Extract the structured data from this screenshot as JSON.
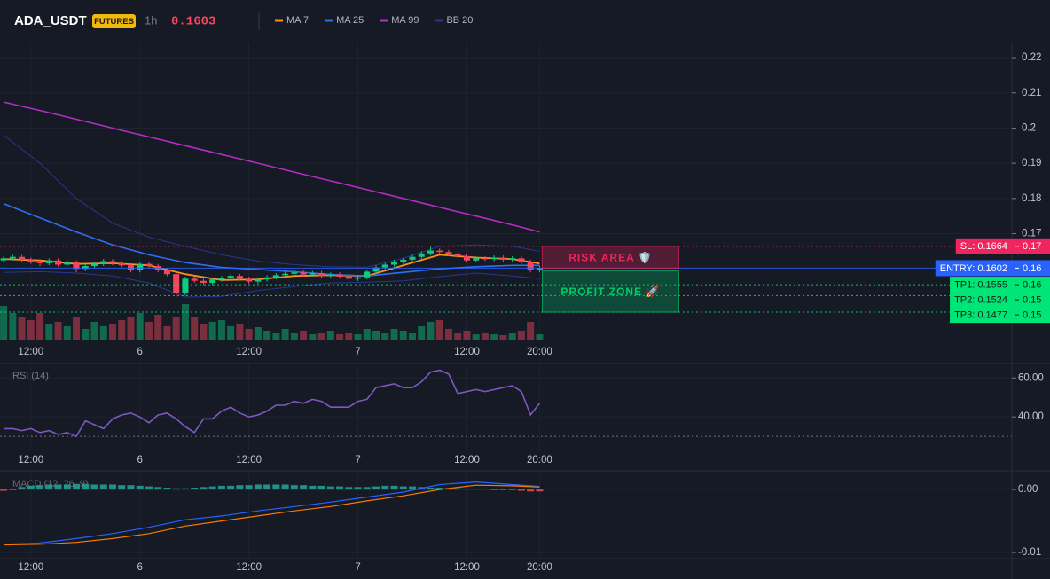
{
  "header": {
    "symbol": "ADA_USDT",
    "badge": "FUTURES",
    "interval": "1h",
    "last_price": 0.1603
  },
  "chart_data": [
    {
      "type": "candlestick",
      "grid": true,
      "x": [
        9,
        10,
        11,
        12,
        13,
        14,
        15,
        16,
        17,
        18,
        19,
        20,
        21,
        22,
        23,
        24,
        25,
        26,
        27,
        28,
        29,
        30,
        31,
        32,
        33,
        34,
        35,
        36,
        37,
        38,
        39,
        40,
        41,
        42,
        43,
        44,
        45,
        46,
        47,
        48,
        49,
        50,
        51,
        52,
        53,
        54,
        55,
        56,
        57,
        58,
        59,
        60,
        61,
        62,
        63,
        64,
        65,
        66,
        67,
        68
      ],
      "open": [
        0.1624,
        0.163,
        0.1634,
        0.1626,
        0.162,
        0.1616,
        0.1624,
        0.1612,
        0.1618,
        0.16,
        0.1608,
        0.1614,
        0.1622,
        0.1616,
        0.161,
        0.1596,
        0.1614,
        0.1608,
        0.1596,
        0.1585,
        0.153,
        0.1572,
        0.1566,
        0.156,
        0.157,
        0.1574,
        0.158,
        0.1572,
        0.1564,
        0.157,
        0.1576,
        0.1582,
        0.1586,
        0.159,
        0.1584,
        0.1588,
        0.158,
        0.1584,
        0.1578,
        0.1572,
        0.1576,
        0.1592,
        0.1604,
        0.1612,
        0.162,
        0.1626,
        0.1634,
        0.1644,
        0.1652,
        0.1648,
        0.1642,
        0.1636,
        0.1624,
        0.163,
        0.1628,
        0.1632,
        0.1626,
        0.163,
        0.162,
        0.1596
      ],
      "high": [
        0.1636,
        0.164,
        0.164,
        0.1632,
        0.1626,
        0.163,
        0.163,
        0.1624,
        0.1624,
        0.1614,
        0.162,
        0.1628,
        0.1628,
        0.1622,
        0.1616,
        0.162,
        0.162,
        0.1614,
        0.1602,
        0.1591,
        0.1578,
        0.1578,
        0.1572,
        0.1576,
        0.158,
        0.1586,
        0.1586,
        0.1578,
        0.1576,
        0.1582,
        0.1588,
        0.1592,
        0.1596,
        0.1596,
        0.1594,
        0.1594,
        0.159,
        0.159,
        0.1584,
        0.1582,
        0.1598,
        0.161,
        0.1618,
        0.1626,
        0.1632,
        0.164,
        0.165,
        0.1662,
        0.1658,
        0.1654,
        0.1648,
        0.1642,
        0.1636,
        0.1636,
        0.1638,
        0.1638,
        0.1636,
        0.1636,
        0.1626,
        0.1609
      ],
      "low": [
        0.1618,
        0.1624,
        0.162,
        0.1614,
        0.1608,
        0.161,
        0.1606,
        0.1606,
        0.159,
        0.1594,
        0.1602,
        0.1608,
        0.161,
        0.1604,
        0.159,
        0.159,
        0.1602,
        0.159,
        0.1579,
        0.1518,
        0.1524,
        0.156,
        0.1554,
        0.1554,
        0.1564,
        0.1568,
        0.1566,
        0.1558,
        0.1558,
        0.1564,
        0.157,
        0.1576,
        0.158,
        0.1578,
        0.1578,
        0.1574,
        0.1574,
        0.1572,
        0.1566,
        0.1566,
        0.157,
        0.1586,
        0.1598,
        0.1606,
        0.1614,
        0.162,
        0.1628,
        0.1638,
        0.1642,
        0.1636,
        0.163,
        0.1618,
        0.1618,
        0.1622,
        0.1622,
        0.162,
        0.162,
        0.1614,
        0.159,
        0.159
      ],
      "close": [
        0.163,
        0.1634,
        0.1626,
        0.162,
        0.1616,
        0.1624,
        0.1612,
        0.1618,
        0.16,
        0.1608,
        0.1614,
        0.1622,
        0.1616,
        0.161,
        0.1596,
        0.1614,
        0.1608,
        0.1596,
        0.1585,
        0.153,
        0.1572,
        0.1566,
        0.156,
        0.157,
        0.1574,
        0.158,
        0.1572,
        0.1564,
        0.157,
        0.1576,
        0.1582,
        0.1586,
        0.159,
        0.1584,
        0.1588,
        0.158,
        0.1584,
        0.1578,
        0.1572,
        0.1576,
        0.1592,
        0.1604,
        0.1612,
        0.162,
        0.1626,
        0.1634,
        0.1644,
        0.1652,
        0.1648,
        0.1642,
        0.1636,
        0.1624,
        0.163,
        0.1628,
        0.1632,
        0.1626,
        0.163,
        0.162,
        0.1596,
        0.1603
      ],
      "volume": [
        38,
        30,
        25,
        22,
        30,
        18,
        20,
        15,
        25,
        12,
        20,
        15,
        18,
        22,
        25,
        30,
        20,
        28,
        15,
        25,
        40,
        26,
        18,
        20,
        22,
        15,
        18,
        12,
        14,
        10,
        8,
        12,
        8,
        10,
        6,
        8,
        10,
        6,
        8,
        6,
        12,
        10,
        8,
        12,
        10,
        8,
        15,
        20,
        22,
        12,
        8,
        10,
        6,
        8,
        6,
        5,
        8,
        10,
        20,
        6
      ],
      "up_color": "#0ecb81",
      "down_color": "#f6465d",
      "xlim": [
        8.6,
        120
      ],
      "ylim": [
        0.1394,
        0.2243
      ],
      "xticks": [
        {
          "value": 12,
          "label": "12:00"
        },
        {
          "value": 24,
          "label": "6"
        },
        {
          "value": 36,
          "label": "12:00"
        },
        {
          "value": 48,
          "label": "7"
        },
        {
          "value": 60,
          "label": "12:00"
        },
        {
          "value": 68,
          "label": "20:00"
        }
      ],
      "yticks": [
        0.22,
        0.21,
        0.2,
        0.19,
        0.18,
        0.17
      ],
      "series": [
        {
          "name": "MA 7",
          "color": "#f7931a",
          "x": [
            9,
            13,
            17,
            21,
            25,
            29,
            33,
            37,
            41,
            45,
            49,
            53,
            57,
            61,
            65,
            68
          ],
          "values": [
            0.1628,
            0.1624,
            0.1614,
            0.1616,
            0.161,
            0.1585,
            0.1568,
            0.157,
            0.158,
            0.1582,
            0.158,
            0.161,
            0.164,
            0.1632,
            0.1628,
            0.1615
          ]
        },
        {
          "name": "MA 25",
          "color": "#2f6fed",
          "x": [
            9,
            13,
            17,
            21,
            25,
            29,
            33,
            37,
            41,
            45,
            49,
            53,
            57,
            61,
            65,
            68
          ],
          "values": [
            0.1785,
            0.1745,
            0.1705,
            0.1668,
            0.164,
            0.1618,
            0.1604,
            0.1598,
            0.1592,
            0.1584,
            0.158,
            0.159,
            0.16,
            0.1606,
            0.161,
            0.161
          ]
        },
        {
          "name": "MA 99",
          "color": "#b02fc0",
          "x": [
            9,
            13,
            17,
            21,
            25,
            29,
            33,
            37,
            41,
            45,
            49,
            53,
            57,
            61,
            65,
            68
          ],
          "values": [
            0.2074,
            0.205,
            0.2025,
            0.2,
            0.1975,
            0.195,
            0.1925,
            0.19,
            0.1875,
            0.185,
            0.1825,
            0.18,
            0.1775,
            0.175,
            0.1725,
            0.1705
          ]
        },
        {
          "name": "BB 20",
          "color": "#27378f",
          "x": [
            9,
            13,
            17,
            21,
            25,
            29,
            33,
            37,
            41,
            45,
            49,
            53,
            57,
            61,
            65,
            68
          ],
          "upper": [
            0.198,
            0.19,
            0.18,
            0.173,
            0.169,
            0.1664,
            0.164,
            0.1622,
            0.1612,
            0.1606,
            0.1605,
            0.163,
            0.1664,
            0.1668,
            0.1664,
            0.165
          ],
          "lower": [
            0.159,
            0.1592,
            0.1588,
            0.158,
            0.156,
            0.152,
            0.1522,
            0.1538,
            0.155,
            0.156,
            0.1562,
            0.1566,
            0.1578,
            0.1588,
            0.158,
            0.1572
          ]
        }
      ],
      "levels": [
        {
          "label": "SL: 0.1664",
          "value": 0.1664,
          "axis_label": "0.17",
          "color": "#f0245e",
          "text_color": "#ffffff",
          "line_style": "dotted"
        },
        {
          "label": "ENTRY: 0.1602",
          "value": 0.1602,
          "axis_label": "0.16",
          "color": "#2962ff",
          "text_color": "#ffffff",
          "line_style": "solid"
        },
        {
          "label": "TP1: 0.1555",
          "value": 0.1555,
          "axis_label": "0.16",
          "color": "#00e676",
          "text_color": "#0b2016",
          "line_style": "dotted"
        },
        {
          "label": "TP2: 0.1524",
          "value": 0.1524,
          "axis_label": "0.15",
          "color": "#00e676",
          "text_color": "#0b2016",
          "line_style": "dotted"
        },
        {
          "label": "TP3: 0.1477",
          "value": 0.1477,
          "axis_label": "0.15",
          "color": "#00e676",
          "text_color": "#0b2016",
          "line_style": "dotted"
        }
      ],
      "zones": [
        {
          "label": "RISK AREA 🛡️",
          "color": "#f0245e"
        },
        {
          "label": "PROFIT ZONE 🚀",
          "color": "#00c96b"
        }
      ]
    },
    {
      "type": "line",
      "title": "RSI (14)",
      "grid": true,
      "color": "#7e57c2",
      "x": [
        9,
        10,
        11,
        12,
        13,
        14,
        15,
        16,
        17,
        18,
        19,
        20,
        21,
        22,
        23,
        24,
        25,
        26,
        27,
        28,
        29,
        30,
        31,
        32,
        33,
        34,
        35,
        36,
        37,
        38,
        39,
        40,
        41,
        42,
        43,
        44,
        45,
        46,
        47,
        48,
        49,
        50,
        51,
        52,
        53,
        54,
        55,
        56,
        57,
        58,
        59,
        60,
        61,
        62,
        63,
        64,
        65,
        66,
        67,
        68
      ],
      "values": [
        34,
        34,
        33,
        34,
        32,
        33,
        31,
        32,
        30,
        38,
        36,
        34,
        39,
        41,
        42,
        40,
        37,
        41,
        42,
        39,
        35,
        32,
        39,
        39,
        43,
        45,
        42,
        40,
        41,
        43,
        46,
        46,
        48,
        47,
        49,
        48,
        45,
        45,
        45,
        48,
        49,
        55,
        56,
        57,
        55,
        55,
        58,
        63,
        64,
        62,
        52,
        53,
        54,
        53,
        54,
        55,
        56,
        53,
        41,
        47
      ],
      "levels": [
        30
      ],
      "xlim": [
        8.6,
        120
      ],
      "ylim": [
        22.8,
        67.4
      ],
      "xticks": [
        {
          "value": 12,
          "label": "12:00"
        },
        {
          "value": 24,
          "label": "6"
        },
        {
          "value": 36,
          "label": "12:00"
        },
        {
          "value": 48,
          "label": "7"
        },
        {
          "value": 60,
          "label": "12:00"
        },
        {
          "value": 68,
          "label": "20:00"
        }
      ],
      "yticks": [
        {
          "value": 60,
          "label": "60.00"
        },
        {
          "value": 40,
          "label": "40.00"
        }
      ]
    },
    {
      "type": "macd",
      "title": "MACD (12, 26, 9)",
      "grid": true,
      "x": [
        9,
        10,
        11,
        12,
        13,
        14,
        15,
        16,
        17,
        18,
        19,
        20,
        21,
        22,
        23,
        24,
        25,
        26,
        27,
        28,
        29,
        30,
        31,
        32,
        33,
        34,
        35,
        36,
        37,
        38,
        39,
        40,
        41,
        42,
        43,
        44,
        45,
        46,
        47,
        48,
        49,
        50,
        51,
        52,
        53,
        54,
        55,
        56,
        57,
        58,
        59,
        60,
        61,
        62,
        63,
        64,
        65,
        66,
        67,
        68
      ],
      "histogram": [
        -0.0002,
        -0.0001,
        0.0004,
        0.0006,
        0.0007,
        0.0008,
        0.0008,
        0.0008,
        0.0009,
        0.0009,
        0.0008,
        0.0008,
        0.0008,
        0.0007,
        0.0007,
        0.0006,
        0.0005,
        0.0004,
        0.0003,
        0.0002,
        0.0002,
        0.0003,
        0.0004,
        0.0005,
        0.0006,
        0.0006,
        0.0007,
        0.0007,
        0.0008,
        0.0008,
        0.0008,
        0.0008,
        0.0007,
        0.0007,
        0.0006,
        0.0006,
        0.0005,
        0.0005,
        0.0004,
        0.0004,
        0.0004,
        0.0005,
        0.0006,
        0.0006,
        0.0005,
        0.0005,
        0.0004,
        0.0003,
        0.0003,
        0.0002,
        0.0002,
        0.0001,
        0.0001,
        0.0001,
        -0.0001,
        -0.0001,
        -0.0001,
        -0.0002,
        -0.0003,
        -0.0003
      ],
      "pos_color": "#26a69a",
      "neg_color": "#ef5350",
      "lines": [
        {
          "color": "#2962ff",
          "x": [
            9,
            13,
            17,
            21,
            25,
            29,
            33,
            37,
            41,
            45,
            49,
            53,
            57,
            61,
            65,
            68
          ],
          "values": [
            -0.0087,
            -0.0085,
            -0.0078,
            -0.007,
            -0.006,
            -0.0048,
            -0.0042,
            -0.0034,
            -0.0027,
            -0.002,
            -0.0012,
            -0.0004,
            0.0008,
            0.0012,
            0.0008,
            0.0005
          ]
        },
        {
          "color": "#f57c00",
          "x": [
            9,
            13,
            17,
            21,
            25,
            29,
            33,
            37,
            41,
            45,
            49,
            53,
            57,
            61,
            65,
            68
          ],
          "values": [
            -0.0088,
            -0.0087,
            -0.0084,
            -0.0078,
            -0.007,
            -0.0058,
            -0.005,
            -0.0042,
            -0.0034,
            -0.0027,
            -0.0018,
            -0.001,
            0.0,
            0.0007,
            0.0006,
            0.0004
          ]
        }
      ],
      "xlim": [
        8.6,
        120
      ],
      "ylim": [
        -0.0107,
        0.0027
      ],
      "xticks": [
        {
          "value": 12,
          "label": "12:00"
        },
        {
          "value": 24,
          "label": "6"
        },
        {
          "value": 36,
          "label": "12:00"
        },
        {
          "value": 48,
          "label": "7"
        },
        {
          "value": 60,
          "label": "12:00"
        },
        {
          "value": 68,
          "label": "20:00"
        }
      ],
      "yticks": [
        {
          "value": 0,
          "label": "0.00"
        },
        {
          "value": -0.01,
          "label": "-0.01"
        }
      ]
    }
  ]
}
